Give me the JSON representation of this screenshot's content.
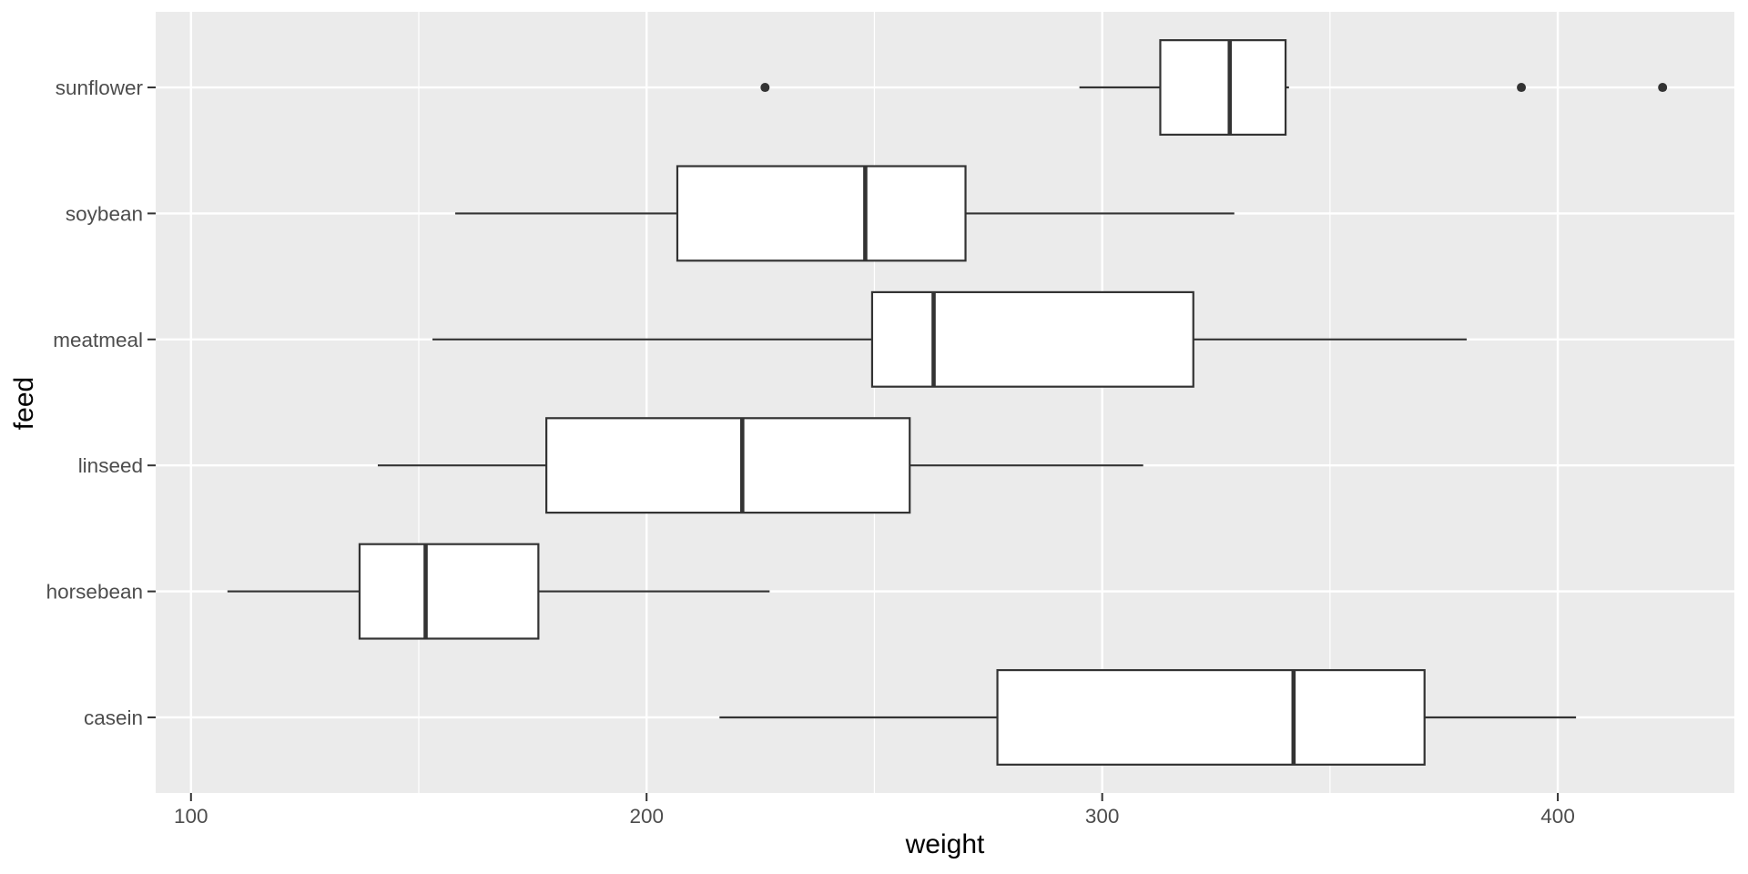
{
  "figure": {
    "xlabel": "weight",
    "ylabel": "feed"
  },
  "theme": {
    "outer_bg": "#FFFFFF",
    "panel_bg": "#EBEBEB",
    "grid_color": "#FFFFFF",
    "box_stroke": "#333333",
    "box_fill": "#FFFFFF",
    "outlier_color": "#333333",
    "tick_mark_color": "#333333",
    "tick_label_color": "#4D4D4D",
    "axis_title_color": "#000000"
  },
  "chart_data": {
    "type": "boxplot",
    "orientation": "horizontal",
    "title": "",
    "xlabel": "weight",
    "ylabel": "feed",
    "grid": true,
    "legend": false,
    "x_range": [
      92.25,
      438.75
    ],
    "x_ticks": [
      100,
      200,
      300,
      400
    ],
    "x_minor_ticks": [
      150,
      250,
      350
    ],
    "categories_top_to_bottom": [
      "sunflower",
      "soybean",
      "meatmeal",
      "linseed",
      "horsebean",
      "casein"
    ],
    "series": [
      {
        "feed": "sunflower",
        "whisker_low": 295,
        "q1": 312.75,
        "median": 328,
        "q3": 340.25,
        "whisker_high": 341,
        "outliers": [
          226,
          392,
          423
        ]
      },
      {
        "feed": "soybean",
        "whisker_low": 158,
        "q1": 206.75,
        "median": 248,
        "q3": 270,
        "whisker_high": 329,
        "outliers": []
      },
      {
        "feed": "meatmeal",
        "whisker_low": 153,
        "q1": 249.5,
        "median": 263,
        "q3": 320,
        "whisker_high": 380,
        "outliers": []
      },
      {
        "feed": "linseed",
        "whisker_low": 141,
        "q1": 178,
        "median": 221,
        "q3": 257.75,
        "whisker_high": 309,
        "outliers": []
      },
      {
        "feed": "horsebean",
        "whisker_low": 108,
        "q1": 137,
        "median": 151.5,
        "q3": 176.25,
        "whisker_high": 227,
        "outliers": []
      },
      {
        "feed": "casein",
        "whisker_low": 216,
        "q1": 277,
        "median": 342,
        "q3": 370.75,
        "whisker_high": 404,
        "outliers": []
      }
    ]
  }
}
